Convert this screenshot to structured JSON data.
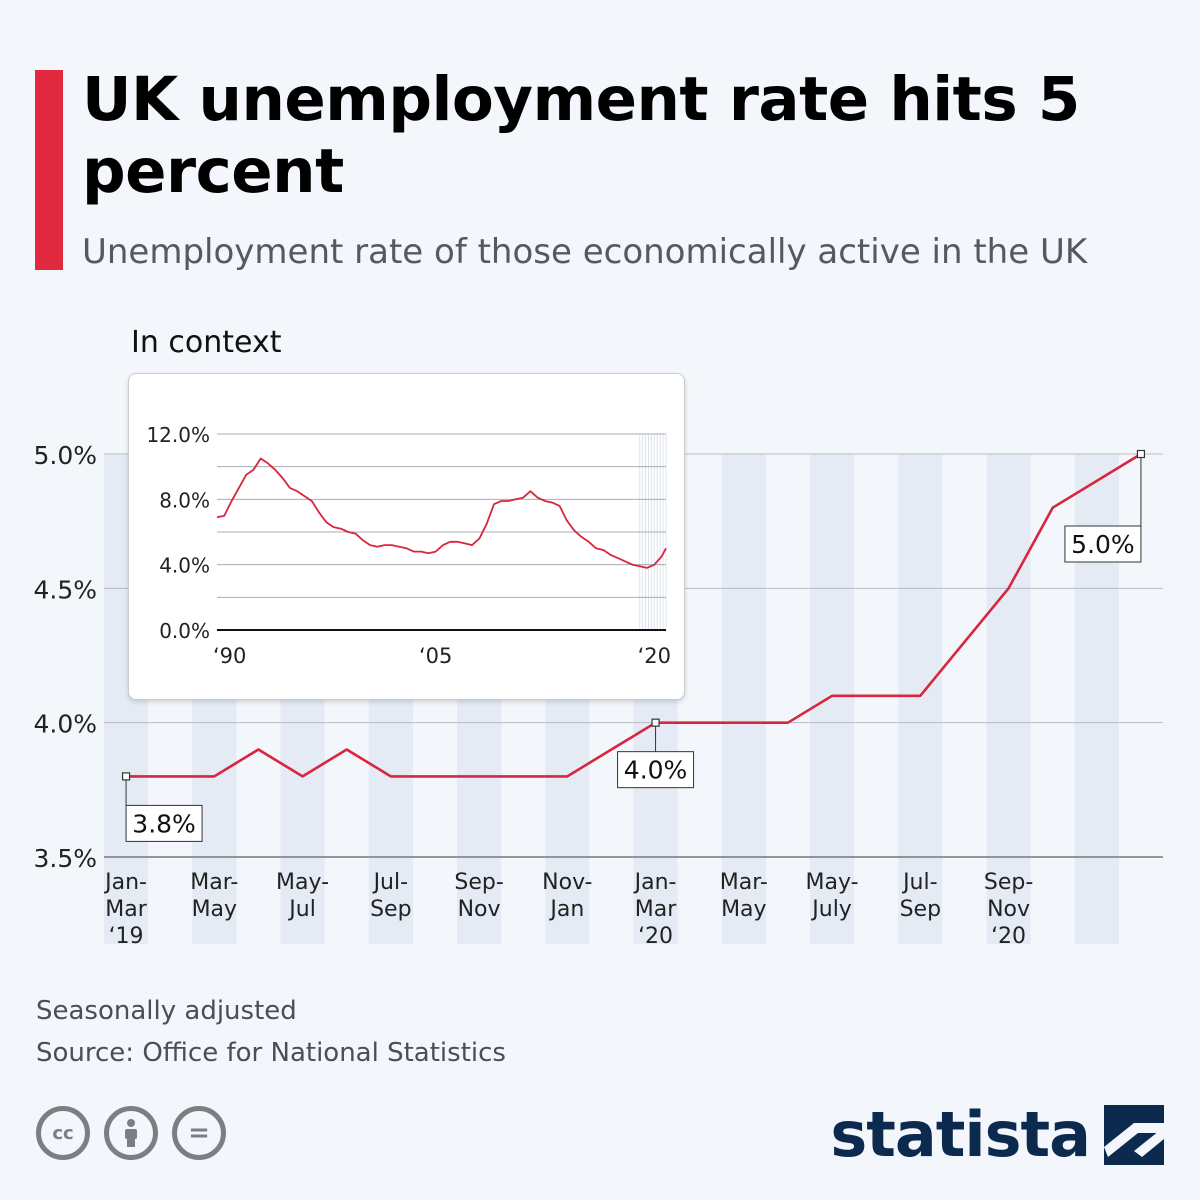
{
  "header": {
    "title": "UK unemployment rate hits 5 percent",
    "subtitle": "Unemployment rate of those economically active in the UK"
  },
  "chart_data": [
    {
      "type": "line",
      "title": "UK unemployment rate hits 5 percent",
      "subtitle": "Unemployment rate of those economically active in the UK",
      "ylim": [
        3.5,
        5.0
      ],
      "yticks": [
        "5.0%",
        "4.5%",
        "4.0%",
        "3.5%"
      ],
      "ytick_values": [
        5.0,
        4.5,
        4.0,
        3.5
      ],
      "x_labels": [
        [
          "Jan-",
          "Mar",
          "‘19"
        ],
        [
          "Mar-",
          "May"
        ],
        [
          "May-",
          "Jul"
        ],
        [
          "Jul-",
          "Sep"
        ],
        [
          "Sep-",
          "Nov"
        ],
        [
          "Nov-",
          "Jan"
        ],
        [
          "Jan-",
          "Mar",
          "‘20"
        ],
        [
          "Mar-",
          "May"
        ],
        [
          "May-",
          "July"
        ],
        [
          "Jul-",
          "Sep"
        ],
        [
          "Sep-",
          "Nov",
          "‘20"
        ]
      ],
      "values": [
        3.8,
        3.8,
        3.8,
        3.9,
        3.8,
        3.9,
        3.8,
        3.8,
        3.8,
        3.8,
        3.8,
        3.9,
        4.0,
        4.0,
        4.0,
        4.0,
        4.1,
        4.1,
        4.1,
        4.3,
        4.5,
        4.8,
        4.9,
        5.0
      ],
      "series_name": "Unemployment rate",
      "annotations": [
        {
          "index": 0,
          "label": "3.8%"
        },
        {
          "index": 12,
          "label": "4.0%"
        },
        {
          "index": 23,
          "label": "5.0%"
        }
      ],
      "grid": true
    },
    {
      "type": "line",
      "title": "In context",
      "ylim": [
        0,
        12
      ],
      "yticks": [
        "12.0%",
        "8.0%",
        "4.0%",
        "0.0%"
      ],
      "ytick_values": [
        12,
        8,
        4,
        0
      ],
      "x_labels": [
        "‘90",
        "‘05",
        "‘20"
      ],
      "xrange": [
        1990,
        2020.8
      ],
      "x_label_values": [
        1990,
        2005,
        2020
      ],
      "x": [
        1990.0,
        1990.5,
        1991.0,
        1991.5,
        1992.0,
        1992.5,
        1993.0,
        1993.5,
        1994.0,
        1994.5,
        1995.0,
        1995.5,
        1996.0,
        1996.5,
        1997.0,
        1997.5,
        1998.0,
        1998.5,
        1999.0,
        1999.5,
        2000.0,
        2000.5,
        2001.0,
        2001.5,
        2002.0,
        2002.5,
        2003.0,
        2003.5,
        2004.0,
        2004.5,
        2005.0,
        2005.5,
        2006.0,
        2006.5,
        2007.0,
        2007.5,
        2008.0,
        2008.5,
        2009.0,
        2009.5,
        2010.0,
        2010.5,
        2011.0,
        2011.5,
        2012.0,
        2012.5,
        2013.0,
        2013.5,
        2014.0,
        2014.5,
        2015.0,
        2015.5,
        2016.0,
        2016.5,
        2017.0,
        2017.5,
        2018.0,
        2018.5,
        2019.0,
        2019.5,
        2020.0,
        2020.5,
        2020.8
      ],
      "values": [
        6.9,
        7.0,
        7.9,
        8.7,
        9.5,
        9.8,
        10.5,
        10.2,
        9.8,
        9.3,
        8.7,
        8.5,
        8.2,
        7.9,
        7.2,
        6.6,
        6.3,
        6.2,
        6.0,
        5.9,
        5.5,
        5.2,
        5.1,
        5.2,
        5.2,
        5.1,
        5.0,
        4.8,
        4.8,
        4.7,
        4.8,
        5.2,
        5.4,
        5.4,
        5.3,
        5.2,
        5.6,
        6.5,
        7.7,
        7.9,
        7.9,
        8.0,
        8.1,
        8.5,
        8.1,
        7.9,
        7.8,
        7.6,
        6.7,
        6.1,
        5.7,
        5.4,
        5.0,
        4.9,
        4.6,
        4.4,
        4.2,
        4.0,
        3.9,
        3.8,
        4.0,
        4.5,
        5.0
      ],
      "highlight_range": [
        2019.0,
        2020.8
      ],
      "grid": true
    }
  ],
  "footer": {
    "note": "Seasonally adjusted",
    "source": "Source: Office for National Statistics",
    "cc_icons": [
      "cc-icon",
      "attribution-icon",
      "no-derivatives-icon"
    ],
    "cc_labels": [
      "cc",
      "",
      "="
    ],
    "logo_text": "statista"
  },
  "colors": {
    "accent": "#e0293f",
    "line": "#d7263d",
    "band": "#e5ebf5",
    "brand": "#0b2a4e"
  }
}
